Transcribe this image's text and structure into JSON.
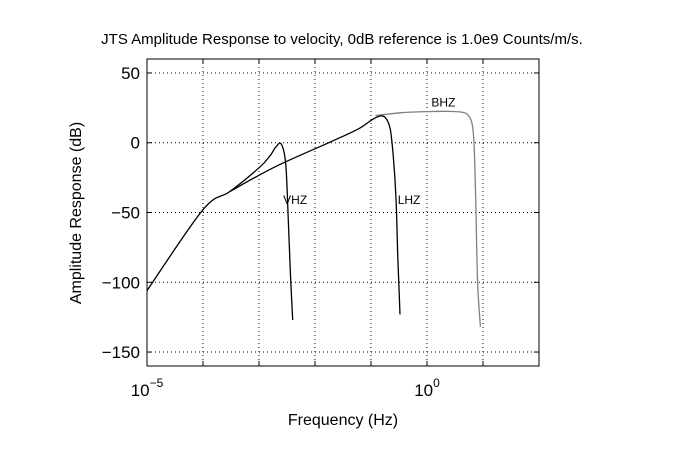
{
  "chart_data": {
    "type": "line",
    "title": "JTS Amplitude Response to velocity, 0dB reference is 1.0e9 Counts/m/s.",
    "xlabel": "Frequency (Hz)",
    "ylabel": "Amplitude Response (dB)",
    "xscale": "log",
    "xlim": [
      1e-05,
      100
    ],
    "ylim": [
      -160,
      60
    ],
    "xticks": [
      {
        "value": 1e-05,
        "base": "10",
        "exp": "−5"
      },
      {
        "value": 1,
        "base": "10",
        "exp": "0"
      }
    ],
    "yticks": [
      {
        "value": 50,
        "label": "50"
      },
      {
        "value": 0,
        "label": "0"
      },
      {
        "value": -50,
        "label": "−50"
      },
      {
        "value": -100,
        "label": "−100"
      },
      {
        "value": -150,
        "label": "−150"
      }
    ],
    "grid": true,
    "series": [
      {
        "name": "BHZ",
        "color": "#808080",
        "label_at": {
          "x": 1.2,
          "y": 26
        },
        "x": [
          0.12,
          0.2,
          0.35,
          0.6,
          1.0,
          2.0,
          3.0,
          4.0,
          5.0,
          6.0,
          6.6,
          7.0,
          7.4,
          8.0,
          9.0
        ],
        "y": [
          19.5,
          20.5,
          21.5,
          22,
          22.3,
          22.5,
          22.4,
          22,
          21,
          17,
          10,
          -5,
          -40,
          -100,
          -132
        ]
      },
      {
        "name": "LHZ",
        "color": "#000000",
        "label_at": {
          "x": 0.3,
          "y": -44
        },
        "x": [
          0.0003,
          0.002,
          0.02,
          0.06,
          0.1,
          0.14,
          0.18,
          0.22,
          0.25,
          0.28,
          0.3,
          0.33
        ],
        "y": [
          -35,
          -17,
          1,
          10,
          16,
          19,
          18,
          10,
          -10,
          -40,
          -80,
          -123
        ]
      },
      {
        "name": "VHZ",
        "color": "#000000",
        "label_at": {
          "x": 0.0027,
          "y": -44
        },
        "x": [
          1e-05,
          0.0001,
          0.0003,
          0.001,
          0.0016,
          0.002,
          0.0025,
          0.003,
          0.0033,
          0.0036,
          0.004
        ],
        "y": [
          -106,
          -48,
          -35,
          -18,
          -9,
          -3,
          -1,
          -15,
          -50,
          -90,
          -127
        ]
      }
    ]
  }
}
